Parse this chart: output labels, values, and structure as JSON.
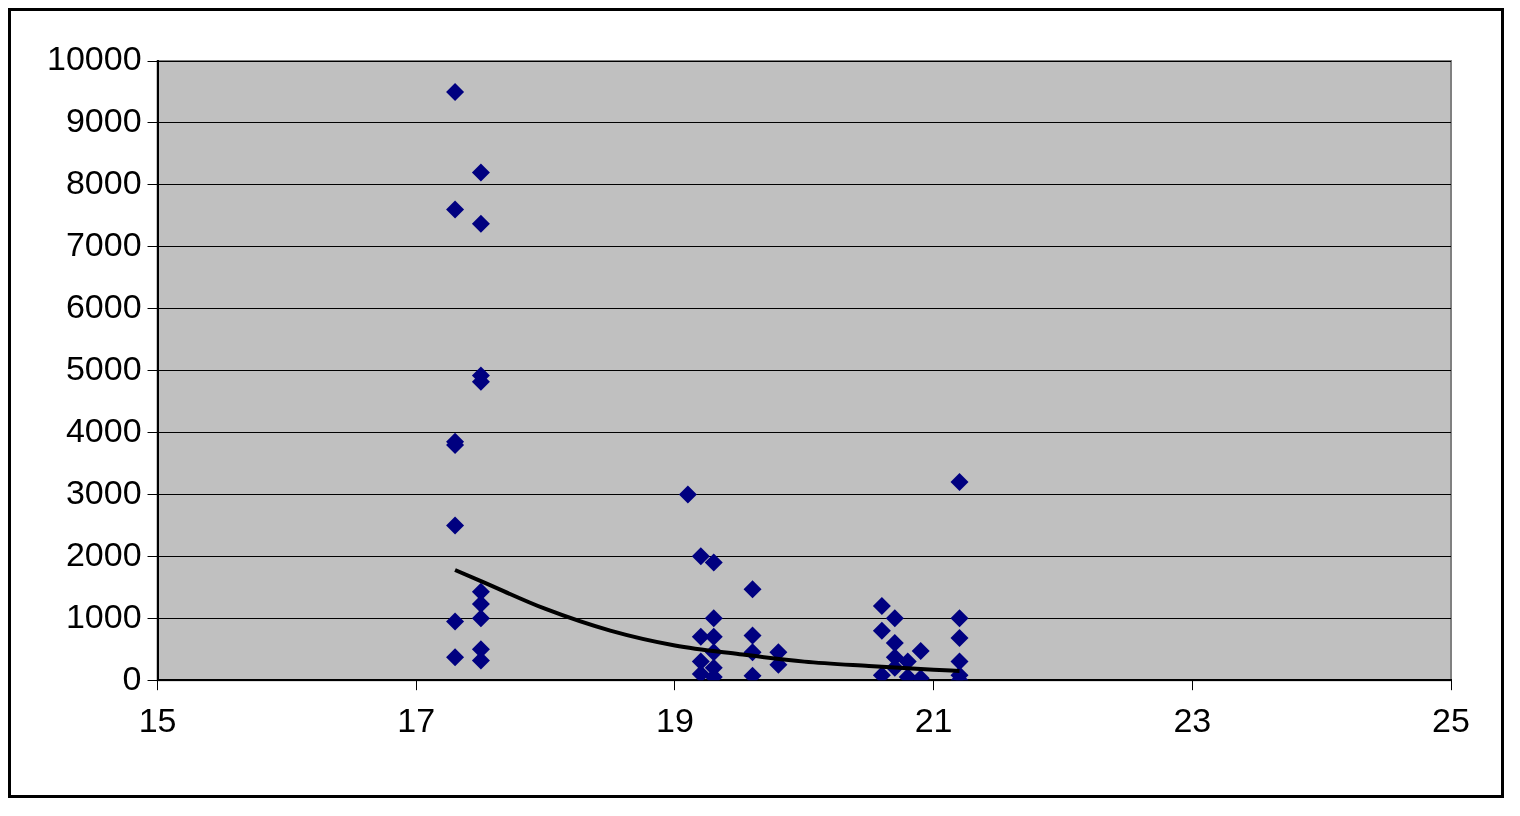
{
  "chart_data": {
    "type": "scatter",
    "xlim": [
      15,
      25
    ],
    "xticks": [
      15,
      17,
      19,
      21,
      23,
      25
    ],
    "ylim": [
      0,
      10000
    ],
    "yticks": [
      0,
      1000,
      2000,
      3000,
      4000,
      5000,
      6000,
      7000,
      8000,
      9000,
      10000
    ],
    "grid": "y",
    "legend": false,
    "marker": "diamond",
    "series": [
      {
        "color": "#000080",
        "x": [
          17.3,
          17.3,
          17.3,
          17.3,
          17.3,
          17.3,
          17.3,
          17.5,
          17.5,
          17.5,
          17.5,
          17.5,
          17.5,
          17.5,
          17.5,
          17.5,
          19.1,
          19.2,
          19.2,
          19.2,
          19.2,
          19.3,
          19.3,
          19.3,
          19.3,
          19.3,
          19.3,
          19.6,
          19.6,
          19.6,
          19.6,
          19.8,
          19.8,
          20.6,
          20.6,
          20.6,
          20.7,
          20.7,
          20.7,
          20.7,
          20.8,
          20.8,
          20.9,
          20.9,
          21.2,
          21.2,
          21.2,
          21.2,
          21.2,
          21.2
        ],
        "values": [
          9500,
          7600,
          3800,
          3850,
          2500,
          950,
          370,
          8200,
          7370,
          4920,
          4820,
          1430,
          1230,
          1000,
          500,
          320,
          3000,
          2000,
          700,
          300,
          100,
          1900,
          1000,
          700,
          450,
          200,
          50,
          1470,
          720,
          450,
          70,
          450,
          250,
          1200,
          800,
          80,
          1000,
          600,
          370,
          200,
          300,
          50,
          470,
          30,
          3200,
          1000,
          680,
          300,
          80,
          0
        ]
      },
      {
        "type": "line",
        "color": "#000000",
        "marker": "none",
        "line_style": "solid",
        "x": [
          17.3,
          17.5,
          18,
          18.5,
          19,
          19.5,
          20,
          20.5,
          21,
          21.2
        ],
        "values": [
          1780,
          1600,
          1150,
          800,
          560,
          420,
          300,
          230,
          170,
          150
        ]
      }
    ]
  }
}
